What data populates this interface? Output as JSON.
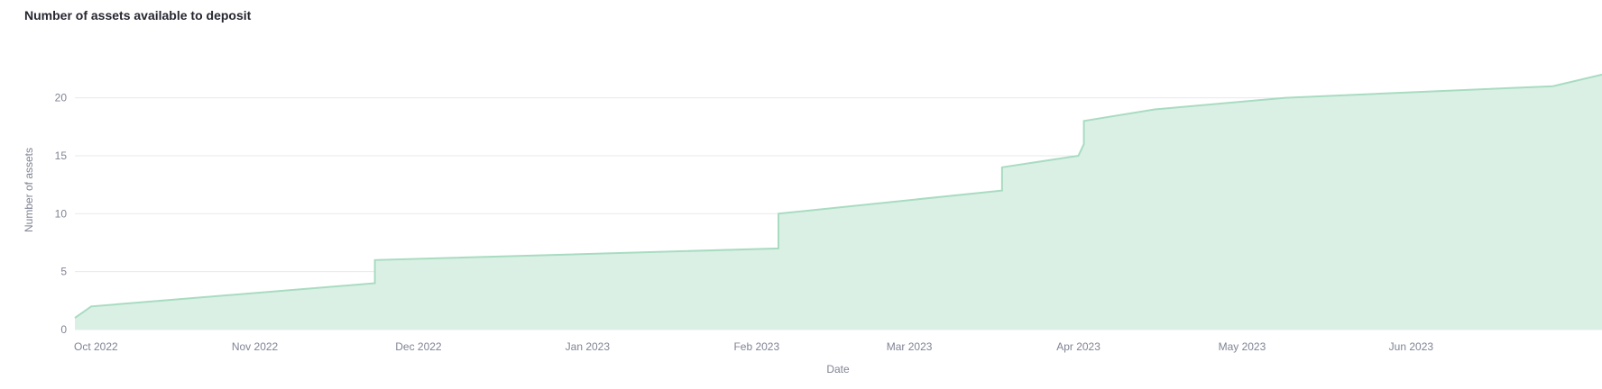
{
  "chart_data": {
    "type": "area",
    "title": "Number of assets available to deposit",
    "xlabel": "Date",
    "ylabel": "Number of assets",
    "x": [
      "2022-09-29",
      "2022-10-02",
      "2022-11-23",
      "2022-11-23",
      "2023-02-05",
      "2023-02-05",
      "2023-03-18",
      "2023-03-18",
      "2023-04-01",
      "2023-04-02",
      "2023-04-02",
      "2023-04-15",
      "2023-05-09",
      "2023-06-27",
      "2023-07-06"
    ],
    "y": [
      1,
      2,
      4,
      6,
      7,
      10,
      12,
      14,
      15,
      16,
      18,
      19,
      20,
      21,
      22
    ],
    "xlim": [
      "2022-09-29",
      "2023-07-06"
    ],
    "ylim": [
      0,
      23
    ],
    "y_ticks": [
      0,
      5,
      10,
      15,
      20
    ],
    "x_ticks": [
      {
        "date": "2022-10-01",
        "label": "Oct 2022"
      },
      {
        "date": "2022-11-01",
        "label": "Nov 2022"
      },
      {
        "date": "2022-12-01",
        "label": "Dec 2022"
      },
      {
        "date": "2023-01-01",
        "label": "Jan 2023"
      },
      {
        "date": "2023-02-01",
        "label": "Feb 2023"
      },
      {
        "date": "2023-03-01",
        "label": "Mar 2023"
      },
      {
        "date": "2023-04-01",
        "label": "Apr 2023"
      },
      {
        "date": "2023-05-01",
        "label": "May 2023"
      },
      {
        "date": "2023-06-01",
        "label": "Jun 2023"
      }
    ],
    "grid": true,
    "colors": {
      "fill": "#dbf0e5",
      "line": "#a8dcc1",
      "grid": "#e6e9ef"
    }
  }
}
